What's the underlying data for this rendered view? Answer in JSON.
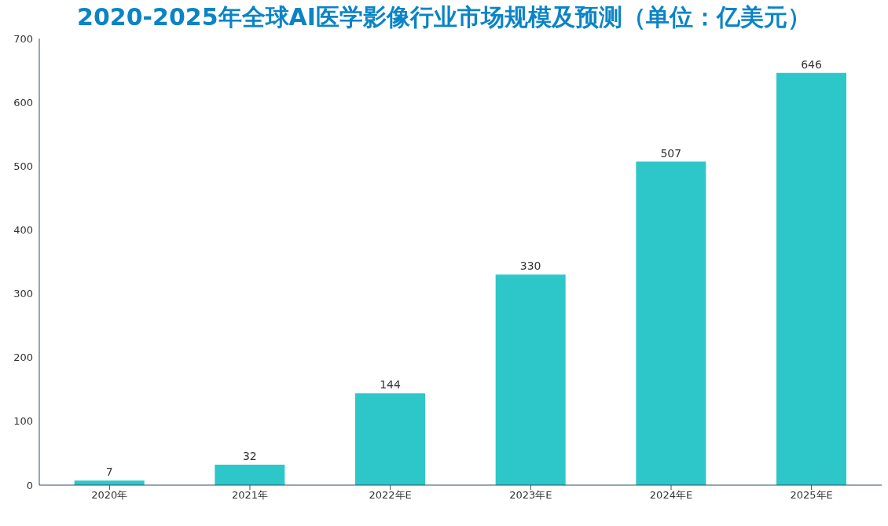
{
  "chart_data": {
    "type": "bar",
    "title": "2020-2025年全球AI医学影像行业市场规模及预测（单位：亿美元）",
    "categories": [
      "2020年",
      "2021年",
      "2022年E",
      "2023年E",
      "2024年E",
      "2025年E"
    ],
    "values": [
      7,
      32,
      144,
      330,
      507,
      646
    ],
    "color": "#2ec7c9",
    "ylim": [
      0,
      700
    ],
    "yticks": [
      0,
      100,
      200,
      300,
      400,
      500,
      600,
      700
    ],
    "grid": false,
    "data_labels": true
  }
}
